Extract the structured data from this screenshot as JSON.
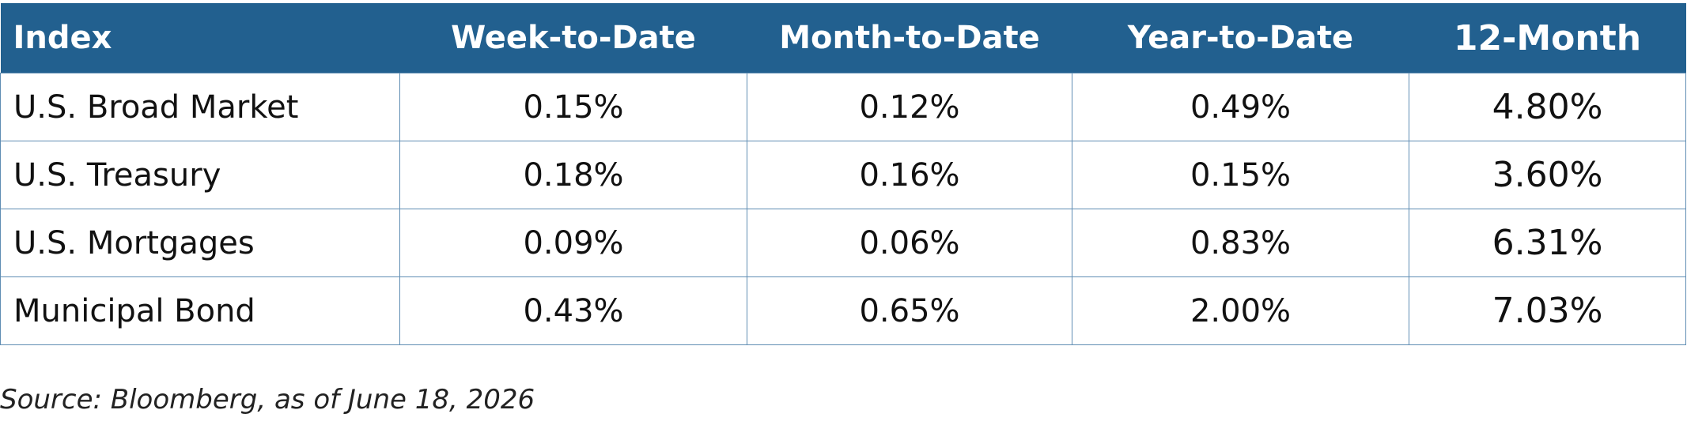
{
  "table": {
    "header": [
      "Index",
      "Week-to-Date",
      "Month-to-Date",
      "Year-to-Date",
      "12-Month"
    ],
    "rows": [
      [
        "U.S. Broad Market",
        "0.15%",
        "0.12%",
        "0.49%",
        "4.80%"
      ],
      [
        "U.S. Treasury",
        "0.18%",
        "0.16%",
        "0.15%",
        "3.60%"
      ],
      [
        "U.S. Mortgages",
        "0.09%",
        "0.06%",
        "0.83%",
        "6.31%"
      ],
      [
        "Municipal Bond",
        "0.43%",
        "0.65%",
        "2.00%",
        "7.03%"
      ]
    ]
  },
  "source": "Source: Bloomberg, as of June 18, 2026"
}
